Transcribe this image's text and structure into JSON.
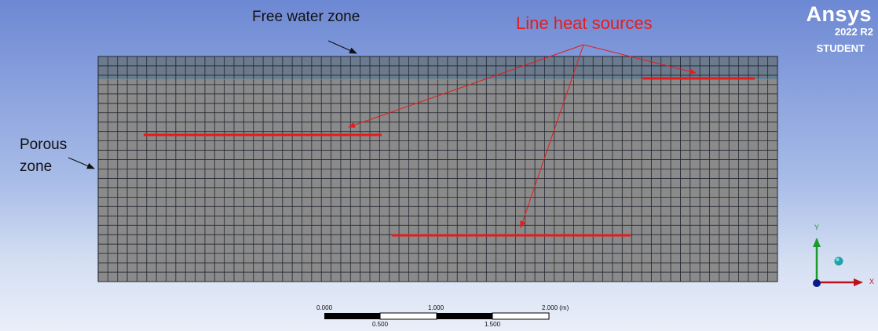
{
  "annotations": {
    "free_water_zone": "Free water zone",
    "porous_zone_line1": "Porous",
    "porous_zone_line2": "zone",
    "line_heat_sources": "Line heat sources"
  },
  "branding": {
    "product": "Ansys",
    "version": "2022 R2",
    "edition": "STUDENT"
  },
  "scale_bar": {
    "top_labels": [
      "0.000",
      "1.000",
      "2.000 (m)"
    ],
    "bottom_labels": [
      "0.500",
      "1.500"
    ]
  },
  "triad": {
    "x_label": "X",
    "y_label": "Y"
  },
  "colors": {
    "free_water_fill": "#6c7a8d",
    "porous_fill": "#8a8a8a",
    "mesh_line": "#1f2530",
    "heat_source": "#e41c1c",
    "annotation_red": "#e41c1c",
    "axis_x": "#c0101e",
    "axis_y": "#1a9a2a",
    "axis_z": "#0a1a8a",
    "triad_sphere": "#1fa3a8"
  }
}
